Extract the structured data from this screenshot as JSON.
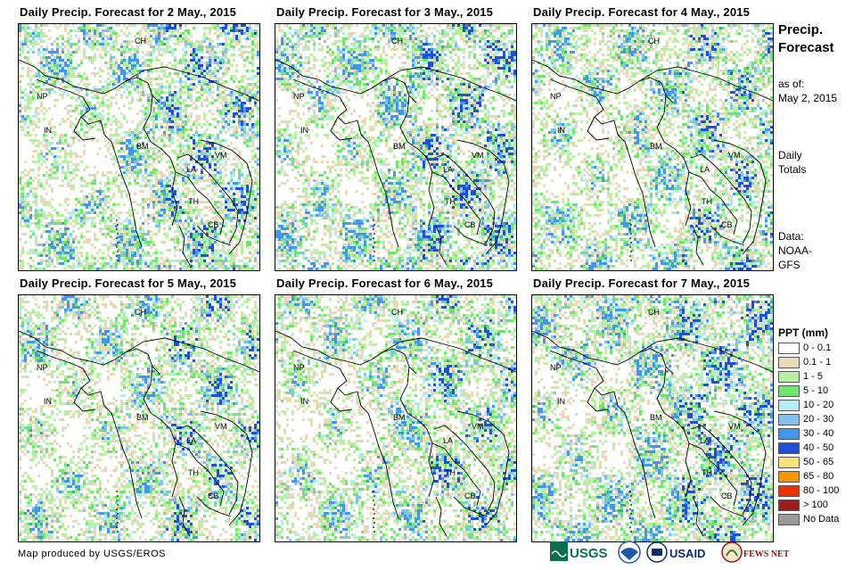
{
  "panels": [
    {
      "title": "Daily Precip. Forecast for 2 May., 2015",
      "seed": 11,
      "wet": 0.55
    },
    {
      "title": "Daily Precip. Forecast for 3 May., 2015",
      "seed": 23,
      "wet": 0.6
    },
    {
      "title": "Daily Precip. Forecast for 4 May., 2015",
      "seed": 37,
      "wet": 0.5
    },
    {
      "title": "Daily Precip. Forecast for 5 May., 2015",
      "seed": 41,
      "wet": 0.45
    },
    {
      "title": "Daily Precip. Forecast for 6 May., 2015",
      "seed": 53,
      "wet": 0.5
    },
    {
      "title": "Daily Precip. Forecast for 7 May., 2015",
      "seed": 67,
      "wet": 0.65
    }
  ],
  "map_labels": [
    "CH",
    "NP",
    "IN",
    "BM",
    "LA",
    "VM",
    "TH",
    "CB"
  ],
  "side": {
    "title_line1": "Precip.",
    "title_line2": "Forecast",
    "asof_label": "as of:",
    "asof_date": "May 2, 2015",
    "daily": "Daily",
    "totals": "Totals",
    "data_label": "Data:",
    "data_src1": "NOAA-",
    "data_src2": "GFS"
  },
  "legend": {
    "title": "PPT (mm)",
    "items": [
      {
        "label": "0 - 0.1",
        "color": "#ffffff"
      },
      {
        "label": "0.1 - 1",
        "color": "#ead8b8"
      },
      {
        "label": "1 - 5",
        "color": "#b4f0a0"
      },
      {
        "label": "5 - 10",
        "color": "#6ee66a"
      },
      {
        "label": "10 - 20",
        "color": "#b4ecf4"
      },
      {
        "label": "20 - 30",
        "color": "#82c0f0"
      },
      {
        "label": "30 - 40",
        "color": "#4196ee"
      },
      {
        "label": "40 - 50",
        "color": "#1e50dc"
      },
      {
        "label": "50 - 65",
        "color": "#fae178"
      },
      {
        "label": "65 - 80",
        "color": "#f59600"
      },
      {
        "label": "80 - 100",
        "color": "#f03200"
      },
      {
        "label": "> 100",
        "color": "#a01e1e"
      },
      {
        "label": "No Data",
        "color": "#9a9a9a"
      }
    ]
  },
  "footer": "Map produced by USGS/EROS",
  "logos": [
    "USGS",
    "NOAA",
    "USAID",
    "FEWS NET"
  ],
  "logo_colors": {
    "usgs": "#0b6e4f",
    "noaa": "#1c5aa8",
    "usaid": "#0d2a6a",
    "fews": "#8b1a1a"
  }
}
